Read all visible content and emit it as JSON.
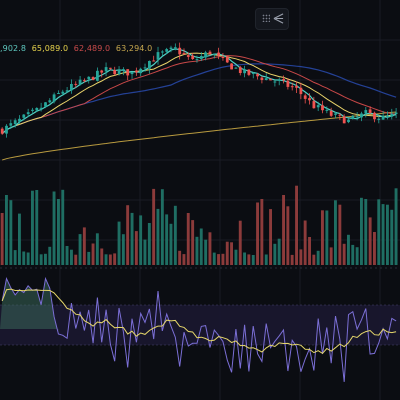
{
  "legend": {
    "ma_values": [
      {
        "text": ",902.8",
        "color": "#5fc9c0"
      },
      {
        "text": "65,089.0",
        "color": "#e8d44d"
      },
      {
        "text": "62,489.0",
        "color": "#c94b4b"
      },
      {
        "text": "63,294.0",
        "color": "#c8a94f"
      }
    ]
  },
  "toolbar": {
    "icons": [
      "grid-dots-icon",
      "drawing-tool-icon"
    ]
  },
  "colors": {
    "background": "#0b0d12",
    "up": "#26a69a",
    "down": "#ef5350",
    "volume_up": "#1f6e63",
    "volume_down": "#8c3b3b",
    "ma_fast": "#4fd1c5",
    "ma_mid": "#e9d36a",
    "ma_slow": "#c84848",
    "ma_long": "#b89a3f",
    "ma_blue": "#2a4fb8",
    "oscillator": "#7b6fd6",
    "oscillator_signal": "#e6d76b",
    "oscillator_bg": "#1a1730",
    "grid": "#191c24"
  },
  "chart_data": {
    "type": "candlestick",
    "title": "",
    "candle_count": 92,
    "price_path": [
      [
        0,
        0.2
      ],
      [
        8,
        0.33
      ],
      [
        14,
        0.46
      ],
      [
        20,
        0.54
      ],
      [
        24,
        0.6
      ],
      [
        30,
        0.58
      ],
      [
        36,
        0.7
      ],
      [
        40,
        0.74
      ],
      [
        44,
        0.66
      ],
      [
        48,
        0.72
      ],
      [
        52,
        0.64
      ],
      [
        56,
        0.58
      ],
      [
        60,
        0.55
      ],
      [
        64,
        0.52
      ],
      [
        68,
        0.47
      ],
      [
        72,
        0.36
      ],
      [
        76,
        0.3
      ],
      [
        80,
        0.26
      ],
      [
        84,
        0.31
      ],
      [
        88,
        0.28
      ],
      [
        91,
        0.3
      ]
    ],
    "moving_averages": [
      "fast",
      "mid",
      "slow",
      "long",
      "blue"
    ],
    "volume_relative": "random",
    "oscillator": {
      "type": "line",
      "has_signal_line": true,
      "has_band": true
    }
  }
}
